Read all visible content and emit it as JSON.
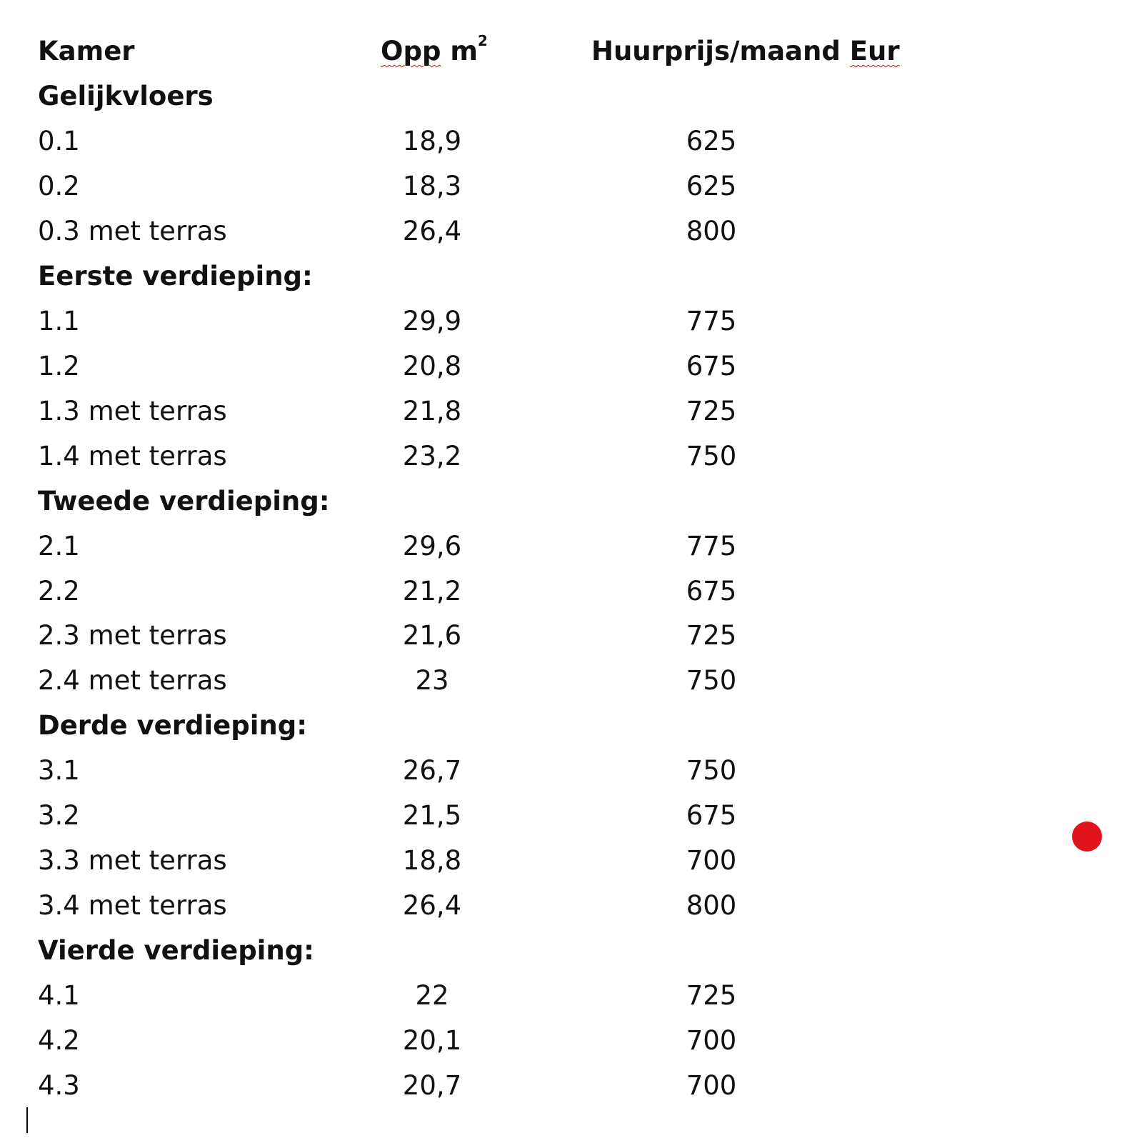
{
  "header": {
    "kamer": "Kamer",
    "opp_word": "Opp",
    "opp_unit": "m",
    "opp_sup": "2",
    "prijs_word": "Huurprijs/maand ",
    "prijs_unit": "Eur"
  },
  "rows": [
    {
      "type": "section",
      "label": "Gelijkvloers"
    },
    {
      "type": "room",
      "kamer": "0.1",
      "opp": "18,9",
      "prijs": "625"
    },
    {
      "type": "room",
      "kamer": "0.2",
      "opp": "18,3",
      "prijs": "625"
    },
    {
      "type": "room",
      "kamer": "0.3 met terras",
      "opp": "26,4",
      "prijs": "800"
    },
    {
      "type": "section",
      "label": "Eerste verdieping:"
    },
    {
      "type": "room",
      "kamer": "1.1",
      "opp": "29,9",
      "prijs": "775"
    },
    {
      "type": "room",
      "kamer": "1.2",
      "opp": "20,8",
      "prijs": "675"
    },
    {
      "type": "room",
      "kamer": "1.3 met terras",
      "opp": "21,8",
      "prijs": "725"
    },
    {
      "type": "room",
      "kamer": "1.4 met terras",
      "opp": "23,2",
      "prijs": "750"
    },
    {
      "type": "section",
      "label": "Tweede verdieping:"
    },
    {
      "type": "room",
      "kamer": "2.1",
      "opp": "29,6",
      "prijs": "775"
    },
    {
      "type": "room",
      "kamer": "2.2",
      "opp": "21,2",
      "prijs": "675"
    },
    {
      "type": "room",
      "kamer": "2.3 met terras",
      "opp": "21,6",
      "prijs": "725"
    },
    {
      "type": "room",
      "kamer": "2.4 met terras",
      "opp": "23",
      "prijs": "750"
    },
    {
      "type": "section",
      "label": "Derde verdieping:"
    },
    {
      "type": "room",
      "kamer": "3.1",
      "opp": "26,7",
      "prijs": "750"
    },
    {
      "type": "room",
      "kamer": "3.2",
      "opp": "21,5",
      "prijs": "675"
    },
    {
      "type": "room",
      "kamer": "3.3 met terras",
      "opp": "18,8",
      "prijs": "700"
    },
    {
      "type": "room",
      "kamer": "3.4 met terras",
      "opp": "26,4",
      "prijs": "800"
    },
    {
      "type": "section",
      "label": "Vierde verdieping:"
    },
    {
      "type": "room",
      "kamer": "4.1",
      "opp": "22",
      "prijs": "725"
    },
    {
      "type": "room",
      "kamer": "4.2",
      "opp": "20,1",
      "prijs": "700"
    },
    {
      "type": "room",
      "kamer": "4.3",
      "opp": "20,7",
      "prijs": "700"
    }
  ],
  "colors": {
    "marker_dot": "#e0141b",
    "spellcheck": "#e00000"
  }
}
